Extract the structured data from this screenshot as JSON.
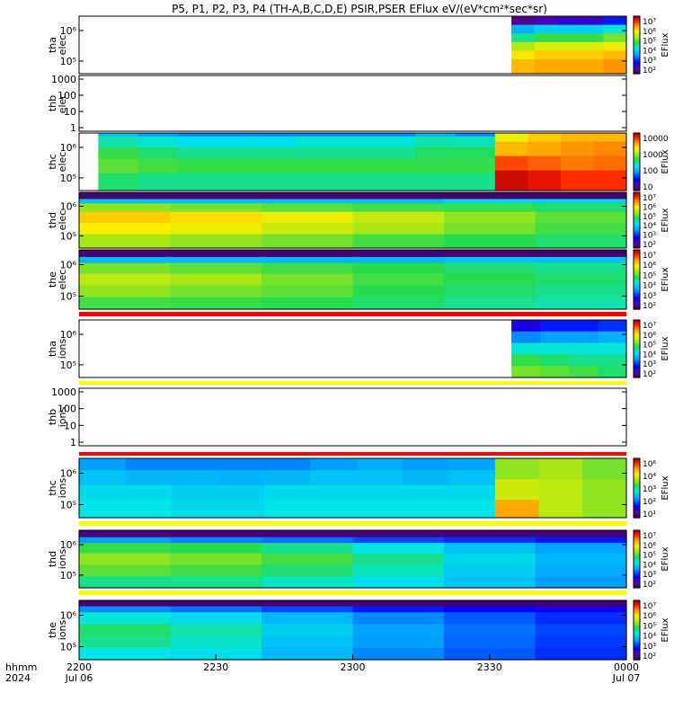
{
  "chart_data": {
    "type": "heatmap",
    "title": "P5, P1, P2, P3, P4 (TH-A,B,C,D,E) PSIR,PSER EFlux eV/(eV*cm²*sec*sr)",
    "time_axis": {
      "tick_labels": [
        "2200",
        "2230",
        "2300",
        "2330",
        "0000"
      ],
      "tick_hours": [
        22.0,
        22.5,
        23.0,
        23.5,
        24.0
      ],
      "start_hour": 22.0,
      "end_hour": 24.0,
      "date_labels": {
        "left": "Jul 06",
        "right": "Jul 07"
      },
      "row_labels": [
        "hhmm",
        "2024"
      ]
    },
    "colorbar_label": "EFlux",
    "panels": [
      {
        "id": "tha_elec",
        "label": [
          "tha",
          "elec"
        ],
        "yticks": [
          "10⁶",
          "10⁵"
        ],
        "colorbar_ticks": [
          "10⁷",
          "10⁶",
          "10⁵",
          "10⁴",
          "10³",
          "10²"
        ],
        "data_start_hour": 23.58,
        "data": [
          {
            "level": 0.15,
            "vals": [
              0.05,
              0.1,
              0.12,
              0.12,
              0.2
            ]
          },
          {
            "level": 0.3,
            "vals": [
              0.35,
              0.4,
              0.4,
              0.4,
              0.45
            ]
          },
          {
            "level": 0.45,
            "vals": [
              0.5,
              0.55,
              0.55,
              0.55,
              0.6
            ]
          },
          {
            "level": 0.6,
            "vals": [
              0.65,
              0.7,
              0.7,
              0.7,
              0.72
            ]
          },
          {
            "level": 0.75,
            "vals": [
              0.75,
              0.78,
              0.78,
              0.78,
              0.8
            ]
          },
          {
            "level": 1.0,
            "vals": [
              0.8,
              0.82,
              0.82,
              0.82,
              0.84
            ]
          }
        ]
      },
      {
        "id": "thb_elec",
        "label": [
          "thb",
          "elec"
        ],
        "yticks": [
          "1000",
          "100",
          "10",
          "1"
        ],
        "colorbar_ticks": [],
        "data": []
      },
      {
        "id": "thc_elec",
        "label": [
          "thc",
          "elec"
        ],
        "yticks": [
          "10⁶",
          "10⁵"
        ],
        "colorbar_ticks": [
          "10000",
          "1000",
          "100",
          "10"
        ],
        "data_start_hour": 22.07,
        "data": [
          {
            "level": 0.06,
            "vals": [
              0.38,
              0.32,
              0.3,
              0.3,
              0.3,
              0.3,
              0.3,
              0.3,
              0.35,
              0.3
            ]
          },
          {
            "level": 0.25,
            "vals": [
              0.48,
              0.45,
              0.43,
              0.43,
              0.43,
              0.45,
              0.45,
              0.45,
              0.48,
              0.47
            ]
          },
          {
            "level": 0.45,
            "vals": [
              0.55,
              0.52,
              0.5,
              0.5,
              0.5,
              0.5,
              0.5,
              0.5,
              0.53,
              0.53
            ]
          },
          {
            "level": 0.7,
            "vals": [
              0.58,
              0.56,
              0.55,
              0.55,
              0.55,
              0.55,
              0.55,
              0.55,
              0.55,
              0.55
            ]
          },
          {
            "level": 1.0,
            "vals": [
              0.52,
              0.5,
              0.5,
              0.5,
              0.5,
              0.5,
              0.5,
              0.5,
              0.5,
              0.5
            ]
          }
        ],
        "late": {
          "start_hour": 23.52,
          "data": [
            {
              "level": 0.15,
              "vals": [
                0.72,
                0.78,
                0.8,
                0.8
              ]
            },
            {
              "level": 0.4,
              "vals": [
                0.8,
                0.82,
                0.84,
                0.85
              ]
            },
            {
              "level": 0.65,
              "vals": [
                0.9,
                0.88,
                0.86,
                0.87
              ]
            },
            {
              "level": 1.0,
              "vals": [
                0.97,
                0.95,
                0.92,
                0.92
              ]
            }
          ]
        }
      },
      {
        "id": "thd_elec",
        "label": [
          "thd",
          "elec"
        ],
        "yticks": [
          "10⁶",
          "10⁵"
        ],
        "colorbar_ticks": [
          "10⁷",
          "10⁶",
          "10⁵",
          "10⁴",
          "10³",
          "10²"
        ],
        "data_start_hour": 22.0,
        "data": [
          {
            "level": 0.12,
            "vals": [
              0.02,
              0.02,
              0.02,
              0.02,
              0.02,
              0.02
            ]
          },
          {
            "level": 0.2,
            "vals": [
              0.38,
              0.38,
              0.38,
              0.38,
              0.4,
              0.4
            ]
          },
          {
            "level": 0.35,
            "vals": [
              0.62,
              0.6,
              0.58,
              0.56,
              0.55,
              0.52
            ]
          },
          {
            "level": 0.55,
            "vals": [
              0.78,
              0.76,
              0.72,
              0.67,
              0.62,
              0.58
            ]
          },
          {
            "level": 0.75,
            "vals": [
              0.74,
              0.72,
              0.68,
              0.64,
              0.6,
              0.56
            ]
          },
          {
            "level": 1.0,
            "vals": [
              0.64,
              0.62,
              0.6,
              0.56,
              0.54,
              0.52
            ]
          }
        ]
      },
      {
        "id": "the_elec",
        "label": [
          "the",
          "elec"
        ],
        "yticks": [
          "10⁶",
          "10⁵"
        ],
        "colorbar_ticks": [
          "10⁷",
          "10⁶",
          "10⁵",
          "10⁴",
          "10³",
          "10²"
        ],
        "data_start_hour": 22.0,
        "data": [
          {
            "level": 0.12,
            "vals": [
              0.02,
              0.02,
              0.02,
              0.02,
              0.02,
              0.02
            ]
          },
          {
            "level": 0.22,
            "vals": [
              0.36,
              0.36,
              0.36,
              0.36,
              0.38,
              0.38
            ]
          },
          {
            "level": 0.4,
            "vals": [
              0.6,
              0.58,
              0.56,
              0.54,
              0.52,
              0.5
            ]
          },
          {
            "level": 0.6,
            "vals": [
              0.66,
              0.64,
              0.6,
              0.56,
              0.54,
              0.52
            ]
          },
          {
            "level": 0.8,
            "vals": [
              0.62,
              0.6,
              0.58,
              0.54,
              0.52,
              0.5
            ]
          },
          {
            "level": 1.0,
            "vals": [
              0.56,
              0.55,
              0.54,
              0.52,
              0.5,
              0.48
            ]
          }
        ]
      },
      {
        "id": "tha_ions",
        "label": [
          "tha",
          "ions"
        ],
        "yticks": [
          "10⁶",
          "10⁵"
        ],
        "colorbar_ticks": [
          "10⁷",
          "10⁶",
          "10⁵",
          "10⁴",
          "10³",
          "10²"
        ],
        "data_start_hour": 23.58,
        "data": [
          {
            "level": 0.2,
            "vals": [
              0.15,
              0.2,
              0.2,
              0.22
            ]
          },
          {
            "level": 0.4,
            "vals": [
              0.3,
              0.32,
              0.32,
              0.35
            ]
          },
          {
            "level": 0.6,
            "vals": [
              0.45,
              0.45,
              0.45,
              0.45
            ]
          },
          {
            "level": 0.8,
            "vals": [
              0.55,
              0.52,
              0.5,
              0.5
            ]
          },
          {
            "level": 1.0,
            "vals": [
              0.6,
              0.58,
              0.56,
              0.52
            ]
          }
        ]
      },
      {
        "id": "thb_ions",
        "label": [
          "thb",
          "ions"
        ],
        "yticks": [
          "1000",
          "100",
          "10",
          "1"
        ],
        "colorbar_ticks": [],
        "data": []
      },
      {
        "id": "thc_ions",
        "label": [
          "thc",
          "ions"
        ],
        "yticks": [
          "10⁶",
          "10⁵"
        ],
        "colorbar_ticks": [
          "10⁶",
          "10⁴",
          "10³",
          "10²",
          "10¹"
        ],
        "data_start_hour": 22.0,
        "data": [
          {
            "level": 0.2,
            "vals": [
              0.32,
              0.3,
              0.3,
              0.3,
              0.3,
              0.32,
              0.34,
              0.32,
              0.33
            ]
          },
          {
            "level": 0.45,
            "vals": [
              0.38,
              0.36,
              0.36,
              0.35,
              0.36,
              0.38,
              0.38,
              0.36,
              0.38
            ]
          },
          {
            "level": 0.7,
            "vals": [
              0.42,
              0.42,
              0.4,
              0.4,
              0.42,
              0.42,
              0.42,
              0.42,
              0.42
            ]
          },
          {
            "level": 1.0,
            "vals": [
              0.44,
              0.44,
              0.42,
              0.42,
              0.44,
              0.44,
              0.44,
              0.44,
              0.44
            ]
          }
        ],
        "late": {
          "start_hour": 23.52,
          "data": [
            {
              "level": 0.35,
              "vals": [
                0.62,
                0.64,
                0.6
              ]
            },
            {
              "level": 0.7,
              "vals": [
                0.68,
                0.66,
                0.62
              ]
            },
            {
              "level": 1.0,
              "vals": [
                0.82,
                0.66,
                0.62
              ]
            }
          ]
        }
      },
      {
        "id": "thd_ions",
        "label": [
          "thd",
          "ions"
        ],
        "yticks": [
          "10⁶",
          "10⁵"
        ],
        "colorbar_ticks": [
          "10⁷",
          "10⁶",
          "10⁵",
          "10⁴",
          "10³",
          "10²"
        ],
        "data_start_hour": 22.0,
        "data": [
          {
            "level": 0.12,
            "vals": [
              0.03,
              0.03,
              0.03,
              0.03,
              0.03,
              0.03
            ]
          },
          {
            "level": 0.22,
            "vals": [
              0.32,
              0.3,
              0.28,
              0.24,
              0.22,
              0.2
            ]
          },
          {
            "level": 0.4,
            "vals": [
              0.55,
              0.54,
              0.5,
              0.44,
              0.38,
              0.33
            ]
          },
          {
            "level": 0.6,
            "vals": [
              0.62,
              0.6,
              0.56,
              0.5,
              0.42,
              0.36
            ]
          },
          {
            "level": 0.8,
            "vals": [
              0.58,
              0.56,
              0.52,
              0.47,
              0.4,
              0.34
            ]
          },
          {
            "level": 1.0,
            "vals": [
              0.5,
              0.5,
              0.46,
              0.42,
              0.38,
              0.32
            ]
          }
        ]
      },
      {
        "id": "the_ions",
        "label": [
          "the",
          "ions"
        ],
        "yticks": [
          "10⁶",
          "10⁵"
        ],
        "colorbar_ticks": [
          "10⁷",
          "10⁶",
          "10⁵",
          "10⁴",
          "10³",
          "10²"
        ],
        "data_start_hour": 22.0,
        "data": [
          {
            "level": 0.1,
            "vals": [
              0.02,
              0.02,
              0.02,
              0.02,
              0.02,
              0.02
            ]
          },
          {
            "level": 0.2,
            "vals": [
              0.3,
              0.28,
              0.24,
              0.2,
              0.18,
              0.16
            ]
          },
          {
            "level": 0.4,
            "vals": [
              0.45,
              0.42,
              0.36,
              0.3,
              0.26,
              0.22
            ]
          },
          {
            "level": 0.6,
            "vals": [
              0.52,
              0.48,
              0.4,
              0.33,
              0.28,
              0.24
            ]
          },
          {
            "level": 0.8,
            "vals": [
              0.5,
              0.46,
              0.38,
              0.32,
              0.27,
              0.23
            ]
          },
          {
            "level": 1.0,
            "vals": [
              0.44,
              0.42,
              0.36,
              0.3,
              0.26,
              0.22
            ]
          }
        ]
      }
    ]
  }
}
